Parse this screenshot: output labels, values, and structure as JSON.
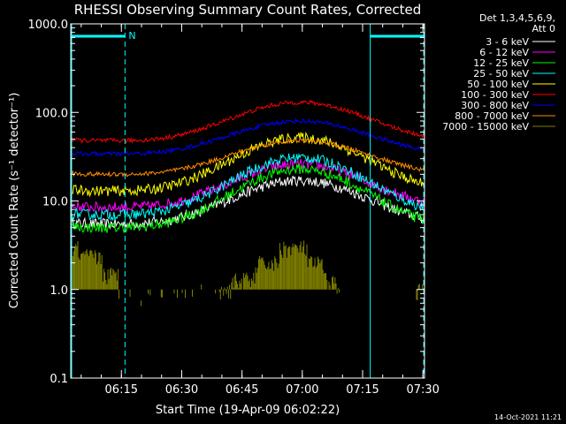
{
  "chart_data": {
    "type": "line",
    "title": "RHESSI Observing Summary Count Rates, Corrected",
    "xlabel": "Start Time (19-Apr-09 06:02:22)",
    "ylabel": "Corrected Count Rate (s⁻¹ detector⁻¹)",
    "yscale": "log",
    "ylim": [
      0.1,
      1000
    ],
    "xlim_minutes": [
      0,
      88
    ],
    "x_unit": "minutes since 06:02:22",
    "x_ticks": [
      "06:15",
      "06:30",
      "06:45",
      "07:00",
      "07:15",
      "07:30"
    ],
    "x_tick_minutes": [
      12.6,
      27.6,
      42.6,
      57.6,
      72.6,
      87.6
    ],
    "y_ticks": [
      "1000.0",
      "100.0",
      "10.0",
      "1.0",
      "0.1"
    ],
    "y_tick_values": [
      1000,
      100,
      10,
      1,
      0.1
    ],
    "legend_header": [
      "Det 1,3,4,5,6,9,",
      "Att 0"
    ],
    "legend_position": "top-right",
    "orbit_flag_label": "N",
    "day_intervals_minutes": [
      [
        0,
        13.5
      ],
      [
        74.5,
        88
      ]
    ],
    "vertical_markers_minutes": [
      13.5,
      74.5,
      87.8
    ],
    "footer_date": "14-Oct-2021 11:21",
    "series": [
      {
        "name": "3 - 6 keV",
        "color": "#ffffff",
        "min": 5.5,
        "max": 17
      },
      {
        "name": "6 - 12 keV",
        "color": "#ff00ff",
        "min": 8.5,
        "max": 26
      },
      {
        "name": "12 - 25 keV",
        "color": "#00ff00",
        "min": 5,
        "max": 23
      },
      {
        "name": "25 - 50 keV",
        "color": "#00ffff",
        "min": 7,
        "max": 31
      },
      {
        "name": "50 - 100 keV",
        "color": "#ffff00",
        "min": 13,
        "max": 52
      },
      {
        "name": "100 - 300 keV",
        "color": "#ff0000",
        "min": 48,
        "max": 130
      },
      {
        "name": "300 - 800 keV",
        "color": "#0000ff",
        "min": 34,
        "max": 80
      },
      {
        "name": "800 - 7000 keV",
        "color": "#ff8c00",
        "min": 20,
        "max": 48
      },
      {
        "name": "7000 - 15000 keV",
        "color": "#808000",
        "min": 1,
        "max": 3
      }
    ]
  }
}
